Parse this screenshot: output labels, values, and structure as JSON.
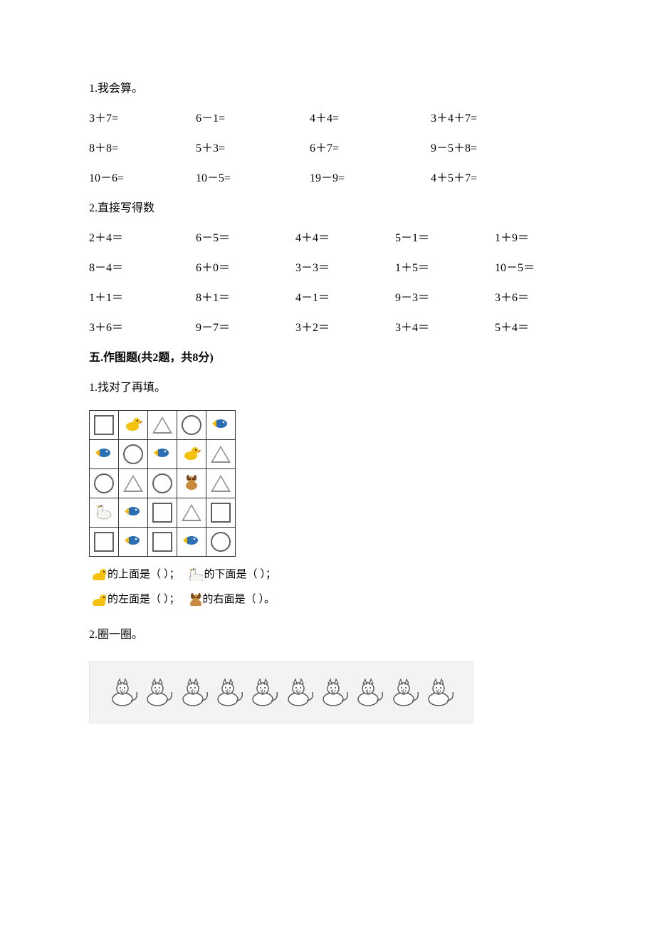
{
  "q1": {
    "title": "1.我会算。",
    "rows": [
      [
        "3＋7=",
        "6－1=",
        "4＋4=",
        "3＋4＋7="
      ],
      [
        "8＋8=",
        "5＋3=",
        "6＋7=",
        "9－5＋8="
      ],
      [
        "10－6=",
        "10－5=",
        "19－9=",
        "4＋5＋7="
      ]
    ]
  },
  "q2": {
    "title": "2.直接写得数",
    "rows": [
      [
        "2＋4＝",
        "6－5＝",
        "4＋4＝",
        "5－1＝",
        "1＋9＝"
      ],
      [
        "8－4＝",
        "6＋0＝",
        "3－3＝",
        "1＋5＝",
        "10－5＝"
      ],
      [
        "1＋1＝",
        "8＋1＝",
        "4－1＝",
        "9－3＝",
        "3＋6＝"
      ],
      [
        "3＋6＝",
        "9－7＝",
        "3＋2＝",
        "3＋4＝",
        "5＋4＝"
      ]
    ]
  },
  "section5": {
    "title": "五.作图题(共2题，共8分)"
  },
  "draw1": {
    "title": "1.找对了再填。",
    "grid": [
      [
        "square",
        "duck",
        "triangle",
        "circle",
        "fish"
      ],
      [
        "fish",
        "circle",
        "fish",
        "duck",
        "triangle"
      ],
      [
        "circle",
        "triangle",
        "circle",
        "dog",
        "triangle"
      ],
      [
        "goose",
        "fish",
        "square",
        "triangle",
        "square"
      ],
      [
        "square",
        "fish",
        "square",
        "fish",
        "circle"
      ]
    ],
    "fill_lines": [
      {
        "icon": "duck",
        "text_a": "的上面是（",
        "blank": "    ",
        "text_b": "）；",
        "icon2": "goose",
        "text_c": "的下面是（",
        "text_d": "）；"
      },
      {
        "icon": "duck",
        "text_a": "的左面是（",
        "blank": "    ",
        "text_b": "）；",
        "icon2": "dog",
        "text_c": "的右面是（",
        "text_d": "）。"
      }
    ]
  },
  "draw2": {
    "title": "2.圈一圈。",
    "cat_count": 10
  },
  "colors": {
    "text": "#000000",
    "border": "#333333",
    "cats_bg": "#f3f3f3",
    "cats_border": "#e3e3e3",
    "shape_stroke": "#606060",
    "fish_body": "#2a6fb5",
    "fish_fin": "#f4b400",
    "duck_body": "#f4c20d",
    "duck_beak": "#e86c0a",
    "goose_body": "#f4f4f0",
    "goose_beak": "#d88b20",
    "dog_body": "#c98a3e",
    "cat_stroke": "#555555"
  }
}
